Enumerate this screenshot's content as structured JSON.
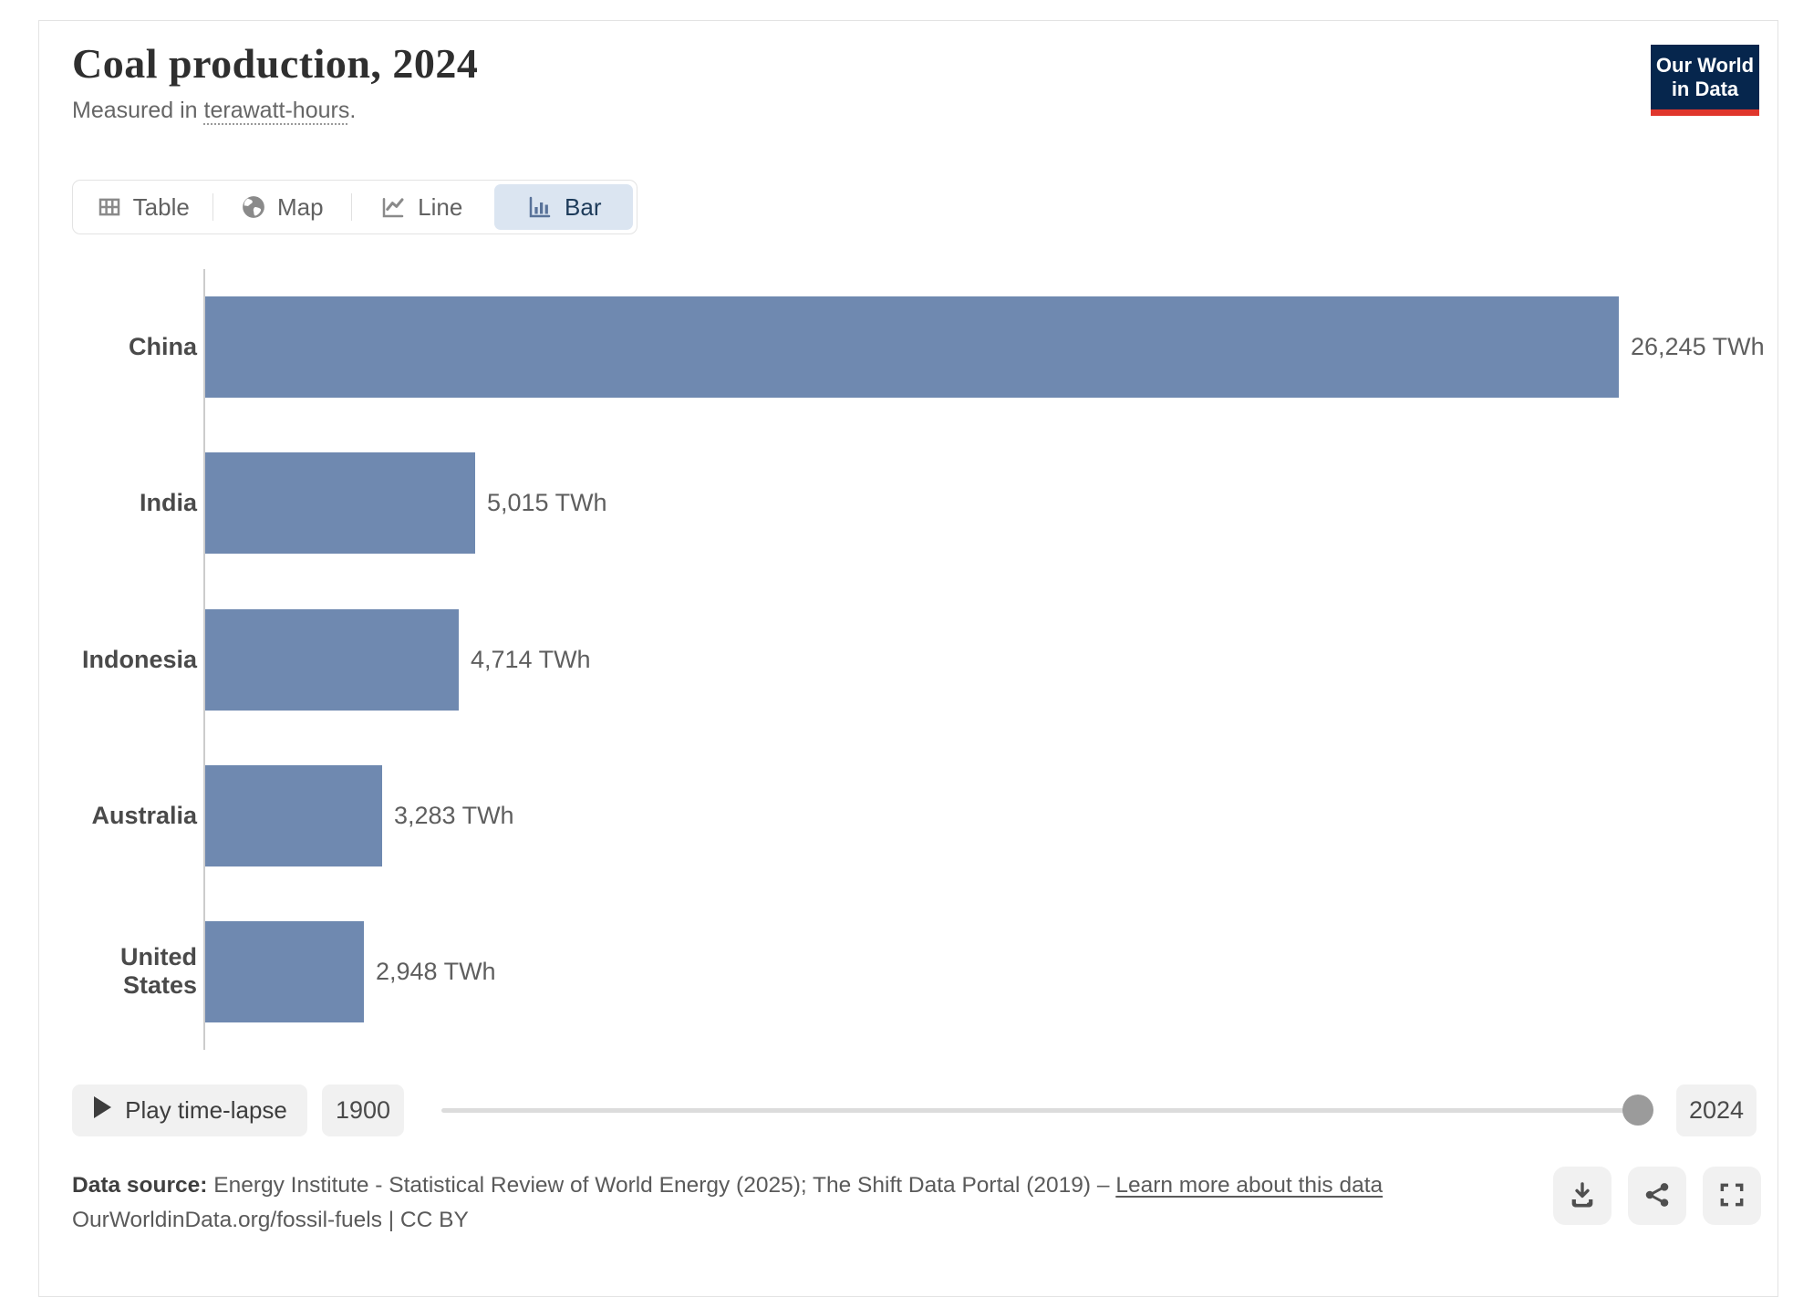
{
  "header": {
    "title": "Coal production, 2024",
    "subtitle_prefix": "Measured in ",
    "subtitle_term": "terawatt-hours",
    "subtitle_suffix": ".",
    "logo": {
      "line1": "Our World",
      "line2": "in Data",
      "bg_color": "#06264d",
      "accent_color": "#e0362c"
    }
  },
  "tabs": [
    {
      "label": "Table",
      "icon": "table-icon",
      "active": false
    },
    {
      "label": "Map",
      "icon": "globe-icon",
      "active": false
    },
    {
      "label": "Line",
      "icon": "line-chart-icon",
      "active": false
    },
    {
      "label": "Bar",
      "icon": "bar-chart-icon",
      "active": true
    }
  ],
  "chart_data": {
    "type": "bar",
    "orientation": "horizontal",
    "title": "Coal production, 2024",
    "unit": "TWh",
    "categories": [
      "China",
      "India",
      "Indonesia",
      "Australia",
      "United States"
    ],
    "values": [
      26245,
      5015,
      4714,
      3283,
      2948
    ],
    "value_labels": [
      "26,245 TWh",
      "5,015 TWh",
      "4,714 TWh",
      "3,283 TWh",
      "2,948 TWh"
    ],
    "bar_color": "#6f89b0",
    "xlim": [
      0,
      26245
    ],
    "grid": false,
    "legend": "none"
  },
  "timeline": {
    "play_label": "Play time-lapse",
    "start_year": "1900",
    "end_year": "2024",
    "handle_position": "end"
  },
  "footer": {
    "source_label": "Data source:",
    "source_text": " Energy Institute - Statistical Review of World Energy (2025); The Shift Data Portal (2019) – ",
    "link_text": "Learn more about this data",
    "line2": "OurWorldinData.org/fossil-fuels | CC BY"
  },
  "actions": [
    {
      "icon": "download-icon"
    },
    {
      "icon": "share-icon"
    },
    {
      "icon": "fullscreen-icon"
    }
  ]
}
